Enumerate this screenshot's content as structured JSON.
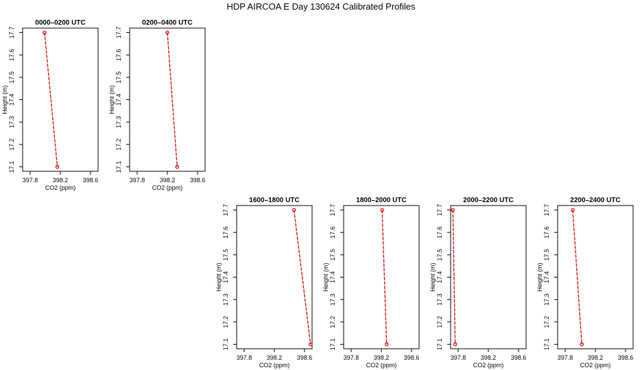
{
  "title": "HDP AIRCOA E  Day 130624  Calibrated Profiles",
  "colors": {
    "series": "#dd0000",
    "axes": "#000000"
  },
  "chart_data": [
    {
      "type": "line",
      "title": "0000–0200 UTC",
      "xlabel": "CO2 (ppm)",
      "ylabel": "Height (m)",
      "xlim": [
        397.7,
        398.7
      ],
      "ylim": [
        17.08,
        17.72
      ],
      "xticks": [
        397.8,
        398.2,
        398.6
      ],
      "xtick_labels": [
        "397.8",
        "398.2",
        "398.6"
      ],
      "yticks": [
        17.1,
        17.2,
        17.3,
        17.4,
        17.5,
        17.6,
        17.7
      ],
      "ytick_labels": [
        "17.1",
        "17.2",
        "17.3",
        "17.4",
        "17.5",
        "17.6",
        "17.7"
      ],
      "x": [
        397.99,
        398.16
      ],
      "y": [
        17.7,
        17.1
      ]
    },
    {
      "type": "line",
      "title": "0200–0400 UTC",
      "xlabel": "CO2 (ppm)",
      "ylabel": "Height (m)",
      "xlim": [
        397.7,
        398.7
      ],
      "ylim": [
        17.08,
        17.72
      ],
      "xticks": [
        397.8,
        398.2,
        398.6
      ],
      "xtick_labels": [
        "397.8",
        "398.2",
        "398.6"
      ],
      "yticks": [
        17.1,
        17.2,
        17.3,
        17.4,
        17.5,
        17.6,
        17.7
      ],
      "ytick_labels": [
        "17.1",
        "17.2",
        "17.3",
        "17.4",
        "17.5",
        "17.6",
        "17.7"
      ],
      "x": [
        398.2,
        398.33
      ],
      "y": [
        17.7,
        17.1
      ]
    },
    {
      "type": "line",
      "title": "1600–1800 UTC",
      "xlabel": "CO2 (ppm)",
      "ylabel": "Height (m)",
      "xlim": [
        397.7,
        398.7
      ],
      "ylim": [
        17.08,
        17.72
      ],
      "xticks": [
        397.8,
        398.2,
        398.6
      ],
      "xtick_labels": [
        "397.8",
        "398.2",
        "398.6"
      ],
      "yticks": [
        17.1,
        17.2,
        17.3,
        17.4,
        17.5,
        17.6,
        17.7
      ],
      "ytick_labels": [
        "17.1",
        "17.2",
        "17.3",
        "17.4",
        "17.5",
        "17.6",
        "17.7"
      ],
      "x": [
        398.46,
        398.68
      ],
      "y": [
        17.7,
        17.1
      ]
    },
    {
      "type": "line",
      "title": "1800–2000 UTC",
      "xlabel": "CO2 (ppm)",
      "ylabel": "Height (m)",
      "xlim": [
        397.7,
        398.7
      ],
      "ylim": [
        17.08,
        17.72
      ],
      "xticks": [
        397.8,
        398.2,
        398.6
      ],
      "xtick_labels": [
        "397.8",
        "398.2",
        "398.6"
      ],
      "yticks": [
        17.1,
        17.2,
        17.3,
        17.4,
        17.5,
        17.6,
        17.7
      ],
      "ytick_labels": [
        "17.1",
        "17.2",
        "17.3",
        "17.4",
        "17.5",
        "17.6",
        "17.7"
      ],
      "x": [
        398.21,
        398.27
      ],
      "y": [
        17.7,
        17.1
      ]
    },
    {
      "type": "line",
      "title": "2000–2200 UTC",
      "xlabel": "CO2 (ppm)",
      "ylabel": "Height (m)",
      "xlim": [
        397.7,
        398.7
      ],
      "ylim": [
        17.08,
        17.72
      ],
      "xticks": [
        397.8,
        398.2,
        398.6
      ],
      "xtick_labels": [
        "397.8",
        "398.2",
        "398.6"
      ],
      "yticks": [
        17.1,
        17.2,
        17.3,
        17.4,
        17.5,
        17.6,
        17.7
      ],
      "ytick_labels": [
        "17.1",
        "17.2",
        "17.3",
        "17.4",
        "17.5",
        "17.6",
        "17.7"
      ],
      "x": [
        397.73,
        397.76
      ],
      "y": [
        17.7,
        17.1
      ]
    },
    {
      "type": "line",
      "title": "2200–2400 UTC",
      "xlabel": "CO2 (ppm)",
      "ylabel": "Height (m)",
      "xlim": [
        397.7,
        398.7
      ],
      "ylim": [
        17.08,
        17.72
      ],
      "xticks": [
        397.8,
        398.2,
        398.6
      ],
      "xtick_labels": [
        "397.8",
        "398.2",
        "398.6"
      ],
      "yticks": [
        17.1,
        17.2,
        17.3,
        17.4,
        17.5,
        17.6,
        17.7
      ],
      "ytick_labels": [
        "17.1",
        "17.2",
        "17.3",
        "17.4",
        "17.5",
        "17.6",
        "17.7"
      ],
      "x": [
        397.9,
        398.02
      ],
      "y": [
        17.7,
        17.1
      ]
    }
  ]
}
